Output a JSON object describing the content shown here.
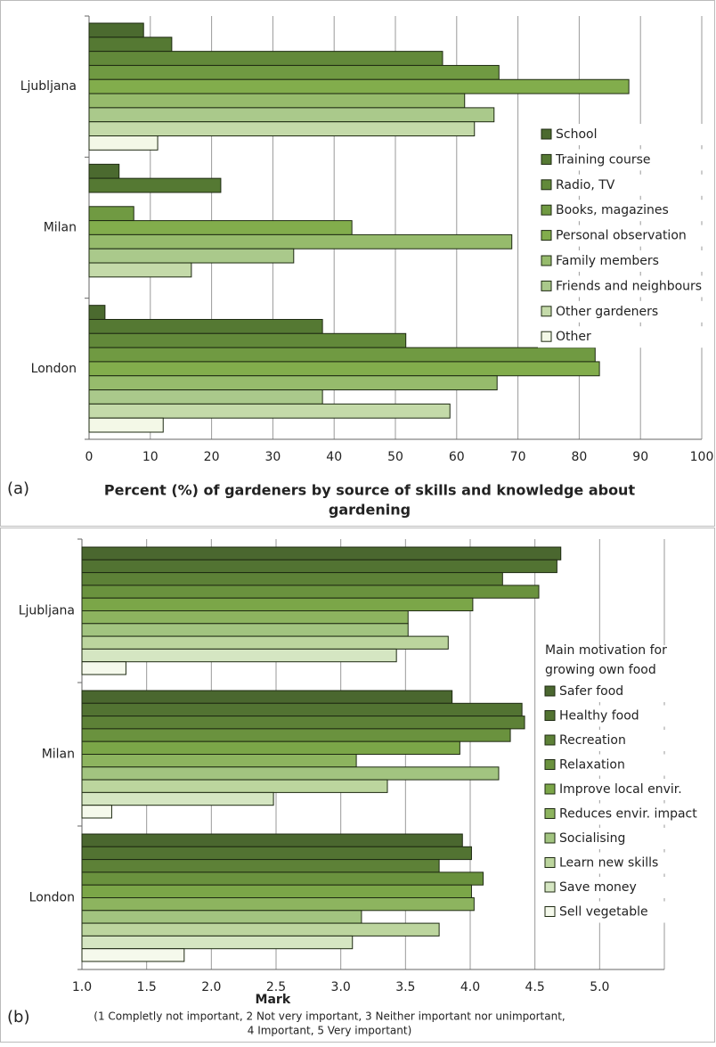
{
  "chart_data": [
    {
      "type": "bar",
      "orientation": "horizontal",
      "panel_label": "(a)",
      "xlabel": [
        "Percent (%) of gardeners by source of skills and knowledge about",
        "gardening"
      ],
      "categories": [
        "Ljubljana",
        "Milan",
        "London"
      ],
      "series": [
        {
          "name": "School",
          "color": "#4b6a2f",
          "values": [
            8.9,
            4.9,
            2.6
          ]
        },
        {
          "name": "Training course",
          "color": "#557933",
          "values": [
            13.5,
            21.5,
            38.1
          ]
        },
        {
          "name": "Radio, TV",
          "color": "#62893a",
          "values": [
            57.7,
            0,
            51.7
          ]
        },
        {
          "name": "Books, magazines",
          "color": "#709a42",
          "values": [
            66.9,
            7.3,
            82.6
          ]
        },
        {
          "name": "Personal observation",
          "color": "#82ad4c",
          "values": [
            88.1,
            42.9,
            83.3
          ]
        },
        {
          "name": "Family members",
          "color": "#96bb6c",
          "values": [
            61.3,
            69.0,
            66.6
          ]
        },
        {
          "name": "Friends and neighbours",
          "color": "#aac98b",
          "values": [
            66.1,
            33.4,
            38.1
          ]
        },
        {
          "name": "Other gardeners",
          "color": "#c4daa9",
          "values": [
            62.9,
            16.7,
            58.9
          ]
        },
        {
          "name": "Other",
          "color": "#f3f8e7",
          "values": [
            11.2,
            0,
            12.1
          ]
        }
      ],
      "xlim": [
        0,
        100
      ],
      "xticks": [
        0,
        10,
        20,
        30,
        40,
        50,
        60,
        70,
        80,
        90,
        100
      ],
      "grid": true,
      "legend": "right"
    },
    {
      "type": "bar",
      "orientation": "horizontal",
      "panel_label": "(b)",
      "xlabel": [
        "Mark"
      ],
      "note": [
        "(1 Completly not important, 2 Not very important, 3 Neither important nor unimportant,",
        "4 Important, 5 Very important)"
      ],
      "legend_title": [
        "Main motivation for",
        "growing own food"
      ],
      "categories": [
        "Ljubljana",
        "Milan",
        "London"
      ],
      "series": [
        {
          "name": "Safer food",
          "color": "#4a672f",
          "values": [
            4.7,
            3.86,
            3.94
          ]
        },
        {
          "name": "Healthy food",
          "color": "#527332",
          "values": [
            4.67,
            4.4,
            4.01
          ]
        },
        {
          "name": "Recreation",
          "color": "#5d8137",
          "values": [
            4.25,
            4.42,
            3.76
          ]
        },
        {
          "name": "Relaxation",
          "color": "#6a923e",
          "values": [
            4.53,
            4.31,
            4.1
          ]
        },
        {
          "name": "Improve local envir.",
          "color": "#7ba648",
          "values": [
            4.02,
            3.92,
            4.01
          ]
        },
        {
          "name": "Reduces envir. impact",
          "color": "#8db45f",
          "values": [
            3.52,
            3.12,
            4.03
          ]
        },
        {
          "name": "Socialising",
          "color": "#a2c480",
          "values": [
            3.52,
            4.22,
            3.16
          ]
        },
        {
          "name": "Learn new skills",
          "color": "#bcd59e",
          "values": [
            3.83,
            3.36,
            3.76
          ]
        },
        {
          "name": "Save money",
          "color": "#d5e6c2",
          "values": [
            3.43,
            2.48,
            3.09
          ]
        },
        {
          "name": "Sell vegetable",
          "color": "#f5f9ec",
          "values": [
            1.34,
            1.23,
            1.79
          ]
        }
      ],
      "xlim": [
        1,
        5.5
      ],
      "xticks": [
        {
          "value": 1,
          "label": "1.0"
        },
        {
          "value": 1.5,
          "label": "1.5"
        },
        {
          "value": 2,
          "label": "2.0"
        },
        {
          "value": 2.5,
          "label": "2.5"
        },
        {
          "value": 3,
          "label": "3.0"
        },
        {
          "value": 3.5,
          "label": "3.5"
        },
        {
          "value": 4,
          "label": "4.0"
        },
        {
          "value": 4.5,
          "label": "4.5"
        },
        {
          "value": 5,
          "label": "5.0"
        }
      ],
      "grid": true,
      "legend": "right"
    }
  ]
}
